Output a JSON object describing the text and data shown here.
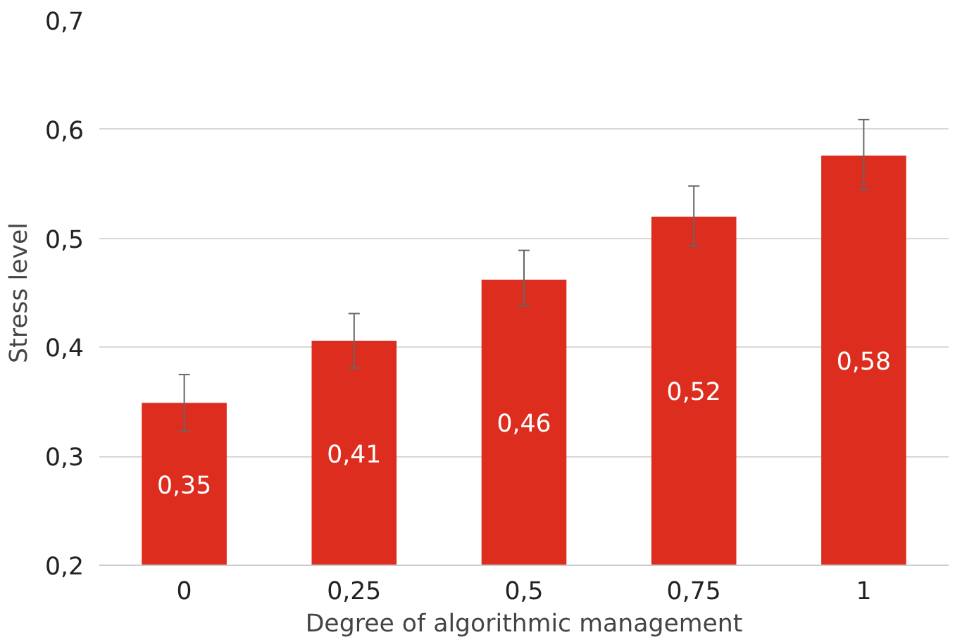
{
  "chart_data": {
    "type": "bar",
    "xlabel": "Degree of algorithmic management",
    "ylabel": "Stress level",
    "categories": [
      "0",
      "0,25",
      "0,5",
      "0,75",
      "1"
    ],
    "values": [
      0.349,
      0.406,
      0.462,
      0.52,
      0.576
    ],
    "value_labels": [
      "0,35",
      "0,41",
      "0,46",
      "0,52",
      "0,58"
    ],
    "errors": [
      [
        0.323,
        0.375
      ],
      [
        0.381,
        0.431
      ],
      [
        0.438,
        0.489
      ],
      [
        0.493,
        0.548
      ],
      [
        0.545,
        0.609
      ]
    ],
    "color": "#dc2d1e",
    "ylim": [
      0.2,
      0.7
    ],
    "yticks": [
      {
        "value": 0.2,
        "label": "0,2"
      },
      {
        "value": 0.3,
        "label": "0,3"
      },
      {
        "value": 0.4,
        "label": "0,4"
      },
      {
        "value": 0.5,
        "label": "0,5"
      },
      {
        "value": 0.6,
        "label": "0,6"
      },
      {
        "value": 0.7,
        "label": "0,7"
      }
    ],
    "grid": "y"
  }
}
